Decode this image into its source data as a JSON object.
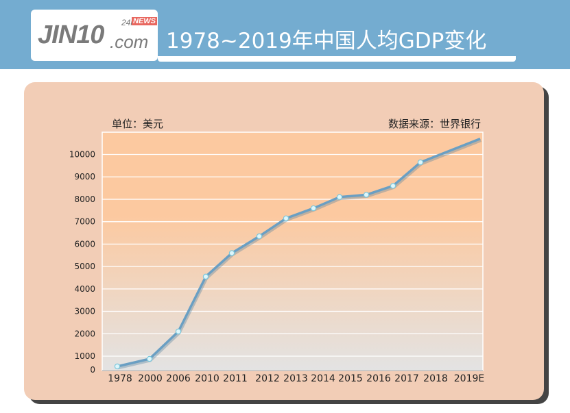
{
  "header": {
    "logo_text": "JIN10.com 24i NEWS",
    "title": "1978~2019年中国人均GDP变化"
  },
  "chart_data": {
    "type": "line",
    "title": "1978~2019年中国人均GDP变化",
    "unit_label": "单位：美元",
    "source_label": "数据来源：世界银行",
    "categories": [
      "1978",
      "2000",
      "2006",
      "2010",
      "2011",
      "2012",
      "2013",
      "2014",
      "2015",
      "2016",
      "2017",
      "2018",
      "2019E"
    ],
    "values": [
      250,
      800,
      2100,
      4550,
      5600,
      6350,
      7150,
      7600,
      8100,
      8200,
      8600,
      9650,
      10700
    ],
    "yticks": [
      0,
      1000,
      2000,
      3000,
      4000,
      5000,
      6000,
      7000,
      8000,
      9000,
      10000
    ],
    "ylim": [
      0,
      10700
    ],
    "grid": true,
    "colors": {
      "line": "#6a9fc3",
      "marker": "#dff6fb",
      "plot_top": "#fcc9a0",
      "plot_bottom": "#e3e3e3",
      "card": "#f2cdb6",
      "header": "#74acd0"
    }
  }
}
